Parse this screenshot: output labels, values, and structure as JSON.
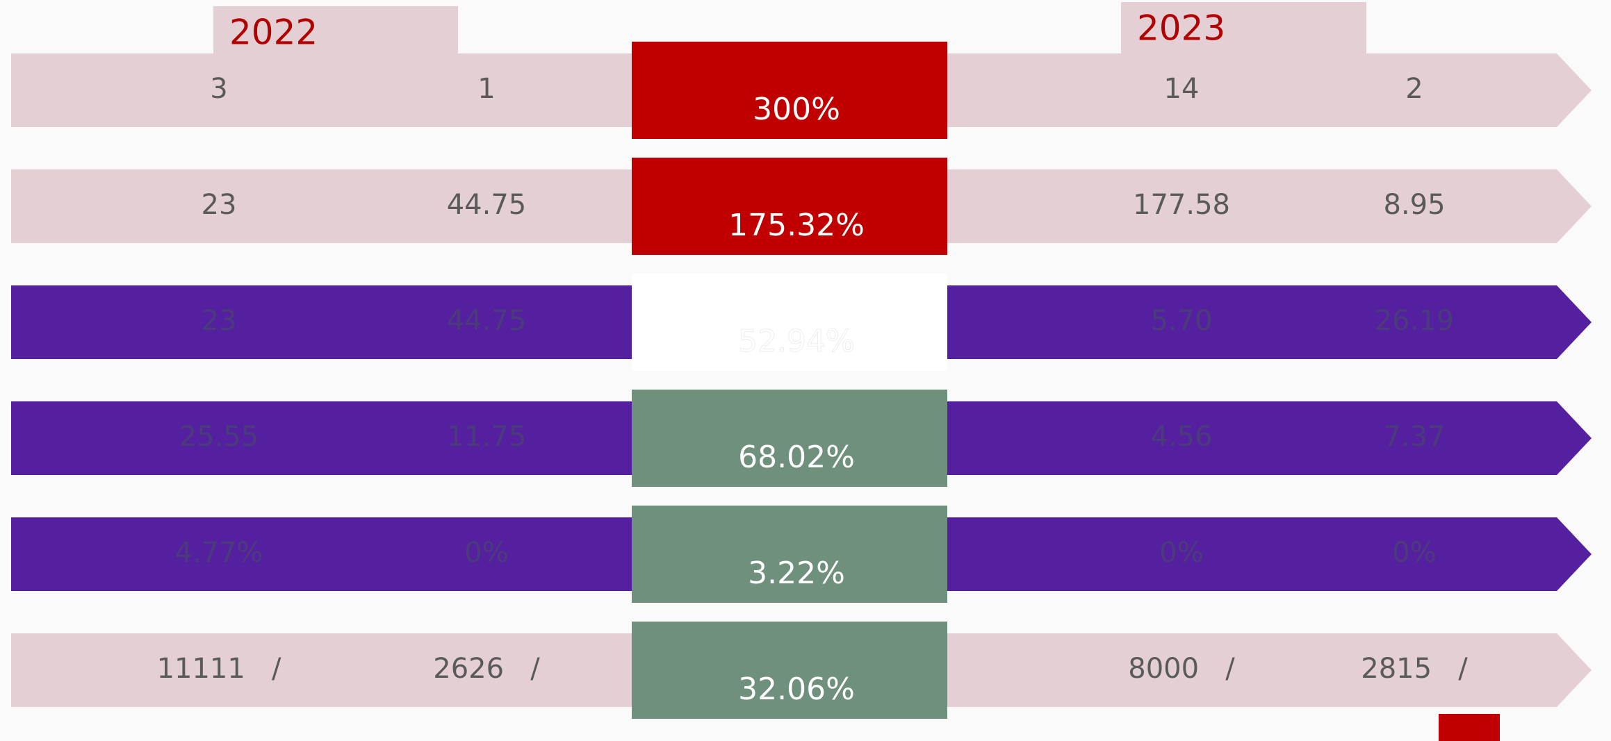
{
  "headers": [
    "2022",
    "2023"
  ],
  "rows": [
    {
      "cells": [
        "3",
        "1",
        "14",
        "2"
      ],
      "change": "300%",
      "band_color": "#e4d0d4",
      "center_color": "#c00000",
      "text_color": "#5a5a5a"
    },
    {
      "cells": [
        "23",
        "44.75",
        "177.58",
        "8.95"
      ],
      "change": "175.32%",
      "band_color": "#e4d0d4",
      "center_color": "#c00000",
      "text_color": "#5a5a5a"
    },
    {
      "cells": [
        "23",
        "44.75",
        "5.70",
        "26.19"
      ],
      "change": "52.94%",
      "band_color": "#5520a0",
      "center_color": "#ffffff",
      "text_color": "#4a3b7a"
    },
    {
      "cells": [
        "25.55",
        "11.75",
        "4.56",
        "7.37"
      ],
      "change": "68.02%",
      "band_color": "#5520a0",
      "center_color": "#6e907c",
      "text_color": "#4a3b7a"
    },
    {
      "cells": [
        "4.77%",
        "0%",
        "0%",
        "0%"
      ],
      "change": "3.22%",
      "band_color": "#5520a0",
      "center_color": "#6e907c",
      "text_color": "#4a3b7a"
    },
    {
      "cells": [
        "11111   /",
        "2626   /",
        "8000   /",
        "2815   /"
      ],
      "change": "32.06%",
      "band_color": "#e4d0d4",
      "center_color": "#6e907c",
      "text_color": "#5a5a5a"
    }
  ]
}
